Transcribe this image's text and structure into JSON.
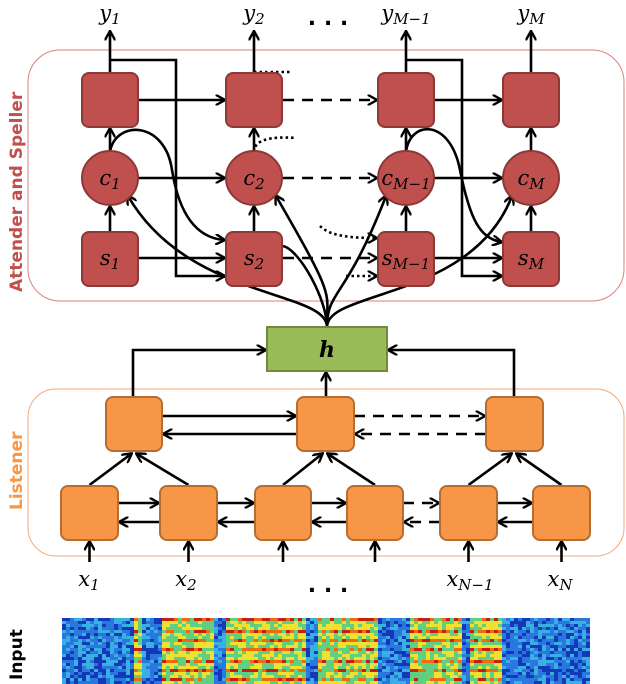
{
  "colors": {
    "speller_node": "#c0504d",
    "speller_border": "#8c3836",
    "speller_frame": "#d9827f",
    "listener_node": "#f79646",
    "listener_border": "#b66d31",
    "listener_frame": "#f4a874",
    "h_fill": "#9bbb59",
    "h_border": "#71893f"
  },
  "speller": {
    "label": "Attender and  Speller",
    "outputs": [
      {
        "base": "y",
        "sub": "1"
      },
      {
        "base": "y",
        "sub": "2"
      },
      {
        "base": "y",
        "sub": "M−1"
      },
      {
        "base": "y",
        "sub": "M"
      }
    ],
    "contexts": [
      {
        "base": "c",
        "sub": "1"
      },
      {
        "base": "c",
        "sub": "2"
      },
      {
        "base": "c",
        "sub": "M−1"
      },
      {
        "base": "c",
        "sub": "M"
      }
    ],
    "states": [
      {
        "base": "s",
        "sub": "1"
      },
      {
        "base": "s",
        "sub": "2"
      },
      {
        "base": "s",
        "sub": "M−1"
      },
      {
        "base": "s",
        "sub": "M"
      }
    ],
    "ellipsis": ". . ."
  },
  "h": {
    "label": "h"
  },
  "listener": {
    "label": "Listener",
    "inputs": [
      {
        "base": "x",
        "sub": "1"
      },
      {
        "base": "x",
        "sub": "2"
      },
      {
        "base": "x",
        "sub": "N−1"
      },
      {
        "base": "x",
        "sub": "N"
      }
    ],
    "ellipsis": ". . ."
  },
  "input": {
    "label": "Input"
  }
}
